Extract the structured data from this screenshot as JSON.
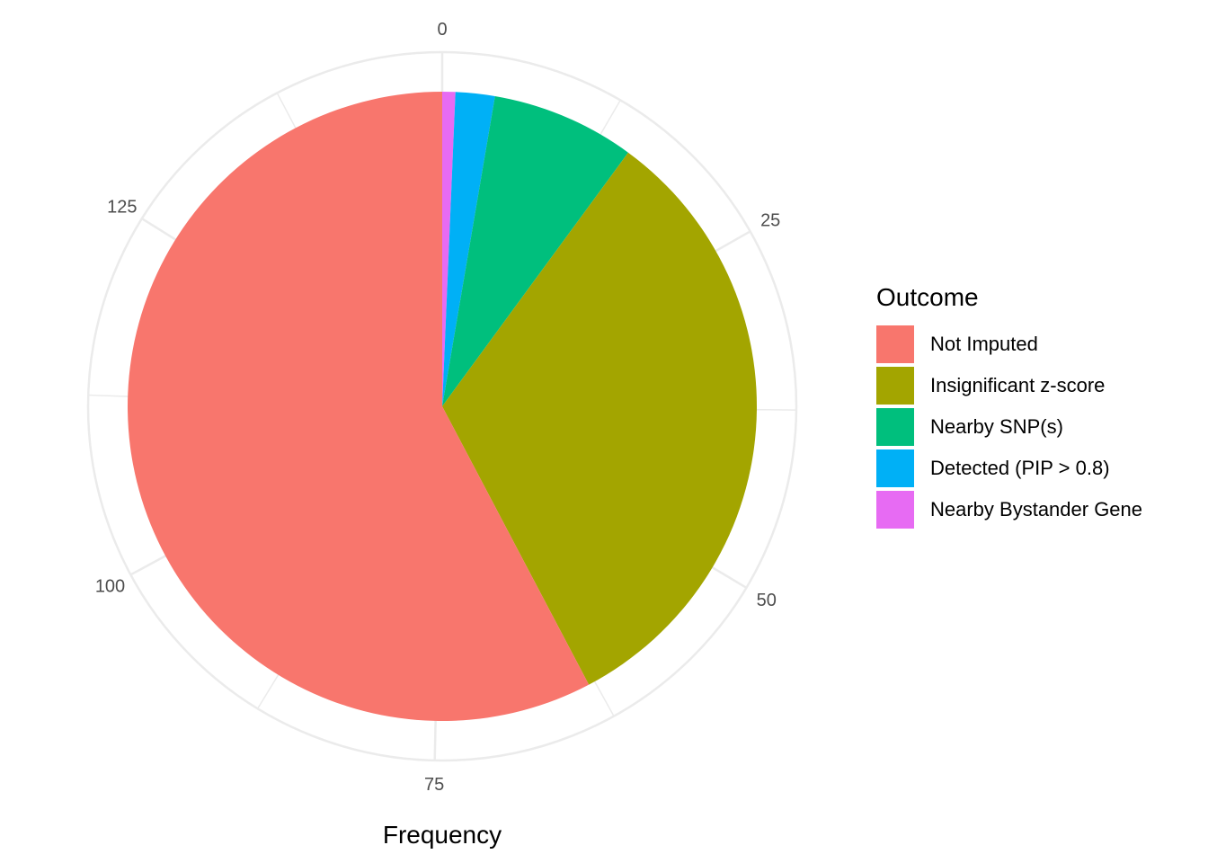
{
  "chart_data": {
    "type": "pie",
    "xlabel": "Frequency",
    "axis_ticks": [
      0,
      25,
      50,
      75,
      100,
      125
    ],
    "axis_max": 149,
    "grid": true,
    "legend": {
      "title": "Outcome",
      "placement": "right"
    },
    "slices": [
      {
        "name": "Not Imputed",
        "value": 86,
        "color": "#F8766D"
      },
      {
        "name": "Insignificant z-score",
        "value": 48,
        "color": "#A3A500"
      },
      {
        "name": "Nearby SNP(s)",
        "value": 11,
        "color": "#00BF7D"
      },
      {
        "name": "Detected (PIP > 0.8)",
        "value": 3,
        "color": "#00B0F6"
      },
      {
        "name": "Nearby Bystander Gene",
        "value": 1,
        "color": "#E76BF3"
      }
    ]
  }
}
